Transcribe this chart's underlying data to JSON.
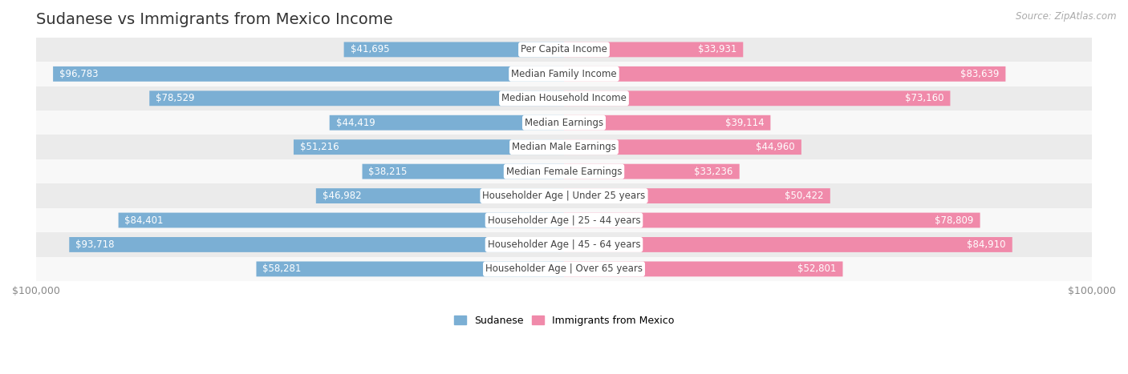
{
  "title": "Sudanese vs Immigrants from Mexico Income",
  "source": "Source: ZipAtlas.com",
  "categories": [
    "Per Capita Income",
    "Median Family Income",
    "Median Household Income",
    "Median Earnings",
    "Median Male Earnings",
    "Median Female Earnings",
    "Householder Age | Under 25 years",
    "Householder Age | 25 - 44 years",
    "Householder Age | 45 - 64 years",
    "Householder Age | Over 65 years"
  ],
  "sudanese": [
    41695,
    96783,
    78529,
    44419,
    51216,
    38215,
    46982,
    84401,
    93718,
    58281
  ],
  "mexico": [
    33931,
    83639,
    73160,
    39114,
    44960,
    33236,
    50422,
    78809,
    84910,
    52801
  ],
  "max_val": 100000,
  "sudanese_color": "#7bafd4",
  "mexico_color": "#f08aaa",
  "row_even_color": "#ebebeb",
  "row_odd_color": "#f8f8f8",
  "bg_color": "#ffffff",
  "title_color": "#333333",
  "label_dark_color": "#555555",
  "label_light_color": "#ffffff",
  "category_box_color": "#ffffff",
  "category_text_color": "#444444",
  "axis_tick_color": "#888888",
  "title_fontsize": 14,
  "source_fontsize": 8.5,
  "value_fontsize": 8.5,
  "category_fontsize": 8.5,
  "legend_fontsize": 9,
  "axis_fontsize": 9,
  "bar_height": 0.62,
  "inside_threshold": 0.28
}
